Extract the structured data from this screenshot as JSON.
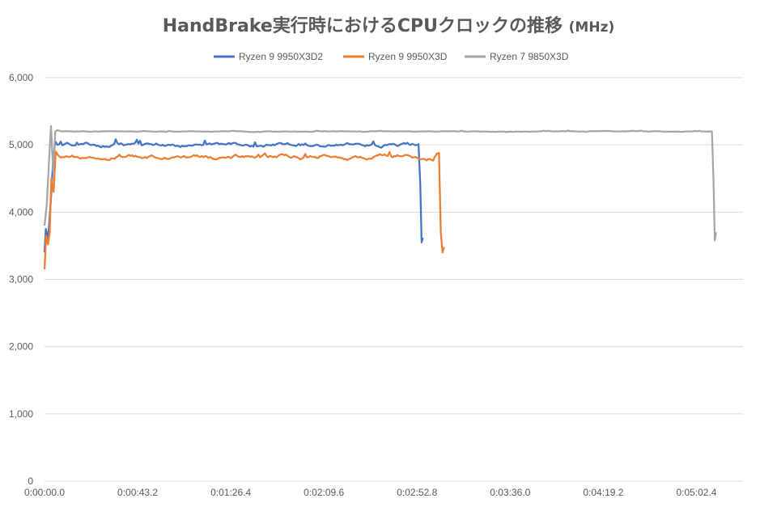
{
  "chart_data": {
    "type": "line",
    "title": "HandBrake実行時におけるCPUクロックの推移",
    "title_unit": "(MHz)",
    "xlabel": "",
    "ylabel": "",
    "ylim": [
      0,
      6000
    ],
    "xlim_seconds": [
      0,
      324
    ],
    "y_ticks": [
      "0",
      "1,000",
      "2,000",
      "3,000",
      "4,000",
      "5,000",
      "6,000"
    ],
    "y_tick_values": [
      0,
      1000,
      2000,
      3000,
      4000,
      5000,
      6000
    ],
    "x_ticks": [
      "0:00:00.0",
      "0:00:43.2",
      "0:01:26.4",
      "0:02:09.6",
      "0:02:52.8",
      "0:03:36.0",
      "0:04:19.2",
      "0:05:02.4"
    ],
    "x_tick_values_seconds": [
      0,
      43.2,
      86.4,
      129.6,
      172.8,
      216.0,
      259.2,
      302.4
    ],
    "grid": "horizontal",
    "legend_position": "top",
    "series": [
      {
        "name": "Ryzen 9 9950X3D2",
        "color": "#4472C4",
        "base": 5000,
        "x": [
          0,
          0.6,
          1.2,
          2.0,
          3.0,
          4.0,
          5.0,
          6.0,
          172.8,
          173.5,
          174.3,
          174.9,
          175.5
        ],
        "y": [
          3400,
          3750,
          3600,
          3750,
          4200,
          4800,
          5050,
          5000,
          5000,
          5010,
          4400,
          3550,
          3620
        ],
        "noise": 40
      },
      {
        "name": "Ryzen 9 9950X3D",
        "color": "#ED7D31",
        "base": 4820,
        "x": [
          0,
          0.8,
          1.6,
          2.4,
          3.2,
          4.2,
          5.2,
          6.2,
          181.0,
          182.0,
          183.0,
          183.8,
          184.6,
          185.4
        ],
        "y": [
          3150,
          3650,
          3520,
          3700,
          4500,
          4300,
          4900,
          4850,
          4820,
          4870,
          4880,
          3700,
          3400,
          3480
        ],
        "noise": 45
      },
      {
        "name": "Ryzen 7 9850X3D",
        "color": "#A5A5A5",
        "base": 5200,
        "x": [
          0,
          1.0,
          2.0,
          3.0,
          4.0,
          5.0,
          6.0,
          7.0,
          309.0,
          309.6,
          310.3,
          310.9,
          311.5
        ],
        "y": [
          3800,
          4100,
          4700,
          5280,
          4600,
          5200,
          5220,
          5210,
          5200,
          5200,
          4500,
          3580,
          3700
        ],
        "noise": 8
      }
    ]
  }
}
